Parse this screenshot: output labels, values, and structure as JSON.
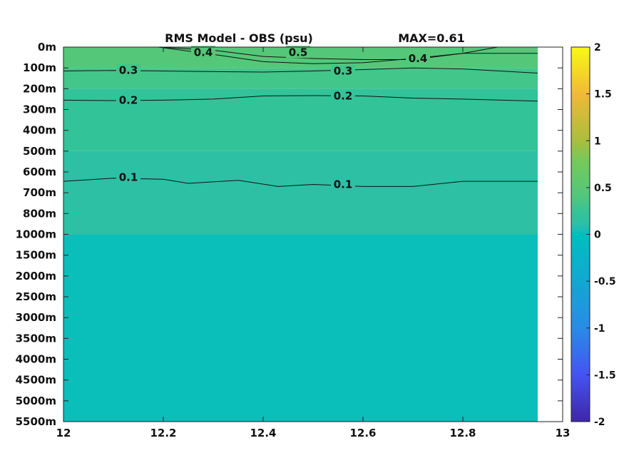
{
  "chart_data": {
    "type": "heatmap",
    "title": "RMS Model - OBS (psu)",
    "max_label": "MAX=0.61",
    "xlabel": "",
    "ylabel": "",
    "xlim": [
      12,
      13
    ],
    "x_ticks": [
      12,
      12.2,
      12.4,
      12.6,
      12.8,
      13
    ],
    "x_tick_labels": [
      "12",
      "12.2",
      "12.4",
      "12.6",
      "12.8",
      "13"
    ],
    "y_tick_labels": [
      "0m",
      "100m",
      "200m",
      "300m",
      "400m",
      "500m",
      "600m",
      "700m",
      "800m",
      "1000m",
      "1500m",
      "2000m",
      "2500m",
      "3000m",
      "3500m",
      "4000m",
      "4500m",
      "5000m",
      "5500m"
    ],
    "data_x_max": 12.95,
    "colorbar": {
      "range": [
        -2,
        2
      ],
      "ticks": [
        2,
        1.5,
        1,
        0.5,
        0,
        -0.5,
        -1,
        -1.5,
        -2
      ],
      "tick_labels": [
        "2",
        "1.5",
        "1",
        "0.5",
        "0",
        "-0.5",
        "-1",
        "-1.5",
        "-2"
      ],
      "colormap": "parula"
    },
    "bands": [
      {
        "depth_range": [
          0,
          100
        ],
        "value": 0.45
      },
      {
        "depth_range": [
          100,
          200
        ],
        "value": 0.32
      },
      {
        "depth_range": [
          200,
          500
        ],
        "value": 0.22
      },
      {
        "depth_range": [
          500,
          1000
        ],
        "value": 0.12
      },
      {
        "depth_range": [
          1000,
          5500
        ],
        "value": 0.02
      }
    ],
    "contours": [
      {
        "level": 0.5,
        "label": "0.5",
        "points": [
          [
            12.19,
            0
          ],
          [
            12.3,
            0.15
          ],
          [
            12.4,
            0.45
          ],
          [
            12.5,
            0.55
          ],
          [
            12.6,
            0.6
          ],
          [
            12.7,
            0.6
          ],
          [
            12.8,
            0.3
          ],
          [
            12.87,
            0
          ]
        ]
      },
      {
        "level": 0.4,
        "label": "0.4",
        "points": [
          [
            12.19,
            0
          ],
          [
            12.3,
            0.35
          ],
          [
            12.4,
            0.7
          ],
          [
            12.5,
            0.8
          ],
          [
            12.6,
            0.75
          ],
          [
            12.7,
            0.55
          ],
          [
            12.8,
            0.3
          ],
          [
            12.95,
            0.3
          ]
        ]
      },
      {
        "level": 0.3,
        "label": "0.3",
        "points": [
          [
            12,
            1.15
          ],
          [
            12.1,
            1.12
          ],
          [
            12.2,
            1.15
          ],
          [
            12.3,
            1.18
          ],
          [
            12.4,
            1.2
          ],
          [
            12.5,
            1.15
          ],
          [
            12.6,
            1.08
          ],
          [
            12.7,
            1.0
          ],
          [
            12.8,
            1.05
          ],
          [
            12.95,
            1.25
          ]
        ]
      },
      {
        "level": 0.2,
        "label": "0.2",
        "points": [
          [
            12,
            2.55
          ],
          [
            12.1,
            2.57
          ],
          [
            12.2,
            2.55
          ],
          [
            12.3,
            2.5
          ],
          [
            12.4,
            2.35
          ],
          [
            12.5,
            2.33
          ],
          [
            12.6,
            2.35
          ],
          [
            12.7,
            2.45
          ],
          [
            12.8,
            2.5
          ],
          [
            12.95,
            2.6
          ]
        ]
      },
      {
        "level": 0.1,
        "label": "0.1",
        "points": [
          [
            12,
            6.45
          ],
          [
            12.1,
            6.3
          ],
          [
            12.2,
            6.35
          ],
          [
            12.25,
            6.55
          ],
          [
            12.35,
            6.4
          ],
          [
            12.43,
            6.7
          ],
          [
            12.5,
            6.6
          ],
          [
            12.6,
            6.7
          ],
          [
            12.7,
            6.7
          ],
          [
            12.8,
            6.45
          ],
          [
            12.95,
            6.45
          ]
        ]
      }
    ],
    "contour_labels": [
      {
        "label": "0.4",
        "x": 12.28,
        "y": 0.25
      },
      {
        "label": "0.5",
        "x": 12.47,
        "y": 0.25
      },
      {
        "label": "0.4",
        "x": 12.71,
        "y": 0.55
      },
      {
        "label": "0.3",
        "x": 12.13,
        "y": 1.12
      },
      {
        "label": "0.3",
        "x": 12.56,
        "y": 1.15
      },
      {
        "label": "0.2",
        "x": 12.13,
        "y": 2.55
      },
      {
        "label": "0.2",
        "x": 12.56,
        "y": 2.35
      },
      {
        "label": "0.1",
        "x": 12.13,
        "y": 6.25
      },
      {
        "label": "0.1",
        "x": 12.56,
        "y": 6.6
      }
    ]
  }
}
